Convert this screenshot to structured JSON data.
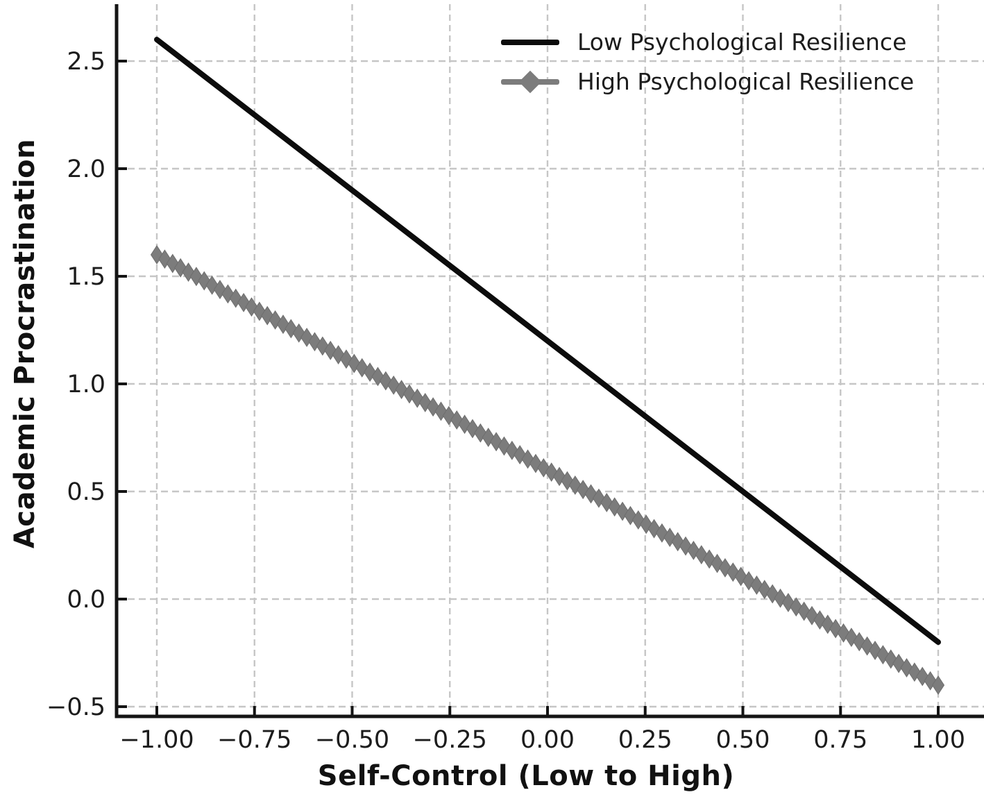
{
  "figure": {
    "background": "#ffffff",
    "axis_color": "#141414",
    "grid_color": "#c6c6c6",
    "tick_label_color": "#1c1c1c"
  },
  "axes": {
    "xlabel": "Self-Control (Low to High)",
    "ylabel": "Academic Procrastination"
  },
  "legend": {
    "position": "upper right",
    "frame": false,
    "items": [
      {
        "label": "Low Psychological Resilience",
        "color": "#0c0c0c",
        "marker": "none"
      },
      {
        "label": "High Psychological Resilience",
        "color": "#7c7c7c",
        "marker": "diamond"
      }
    ]
  },
  "chart_data": {
    "type": "line",
    "title": "",
    "xlabel": "Self-Control (Low to High)",
    "ylabel": "Academic Procrastination",
    "xlim": [
      -1.1,
      1.12
    ],
    "ylim": [
      -0.55,
      2.77
    ],
    "grid": true,
    "grid_style": "dashed",
    "legend_position": "upper right",
    "x_ticks": {
      "values": [
        -1.0,
        -0.75,
        -0.5,
        -0.25,
        0.0,
        0.25,
        0.5,
        0.75,
        1.0
      ],
      "labels": [
        "−1.00",
        "−0.75",
        "−0.50",
        "−0.25",
        "0.00",
        "0.25",
        "0.50",
        "0.75",
        "1.00"
      ]
    },
    "y_ticks": {
      "values": [
        -0.5,
        0.0,
        0.5,
        1.0,
        1.5,
        2.0,
        2.5
      ],
      "labels": [
        "−0.5",
        "0.0",
        "0.5",
        "1.0",
        "1.5",
        "2.0",
        "2.5"
      ]
    },
    "series": [
      {
        "name": "Low Psychological Resilience",
        "color": "#0c0c0c",
        "linewidth": 8,
        "marker": "none",
        "x": [
          -1.0,
          1.0
        ],
        "y": [
          2.6,
          -0.2
        ]
      },
      {
        "name": "High Psychological Resilience",
        "color": "#7c7c7c",
        "marker_edge_color": "#6e6e6e",
        "linewidth": 8,
        "marker": "diamond",
        "marker_count": 100,
        "marker_width": 17,
        "marker_height": 26,
        "x": [
          -1.0,
          1.0
        ],
        "y": [
          1.6,
          -0.4
        ]
      }
    ]
  }
}
